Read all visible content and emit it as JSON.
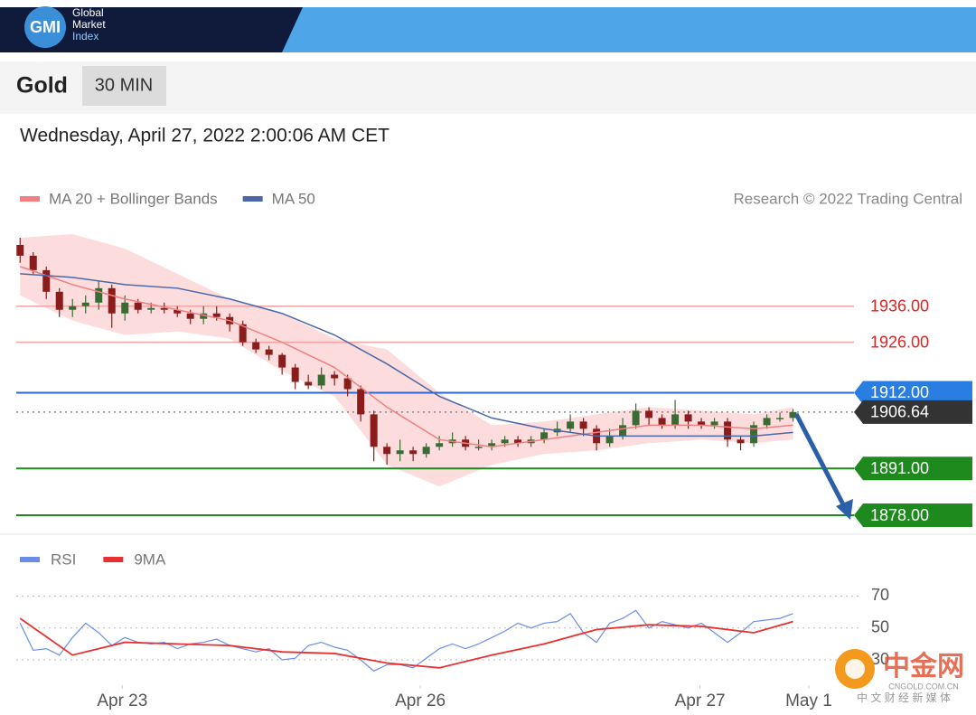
{
  "header": {
    "logo": "GMI",
    "brand": [
      "Global",
      "Market",
      "Index"
    ]
  },
  "instrument": "Gold",
  "timeframe": "30 MIN",
  "date": "Wednesday, April 27, 2022 2:00:06 AM CET",
  "chart_data": [
    {
      "type": "candlestick",
      "attribution": "Research © 2022 Trading Central",
      "up_color": "#3b6b35",
      "down_color": "#8b1c1c",
      "xlim": [
        -0.5,
        72
      ],
      "ylim": [
        1873,
        1957
      ],
      "open": [
        1953,
        1950,
        1946,
        1940,
        1935,
        1936,
        1937,
        1941,
        1934,
        1937,
        1935,
        1935.5,
        1935,
        1934,
        1932.5,
        1934,
        1933,
        1931,
        1926,
        1924,
        1922.5,
        1919,
        1915,
        1914,
        1917,
        1916,
        1913,
        1906,
        1897,
        1895,
        1896,
        1895,
        1897,
        1898,
        1899,
        1897,
        1897,
        1898,
        1899,
        1898,
        1899,
        1901,
        1902,
        1904,
        1902,
        1898,
        1900,
        1903,
        1907,
        1905,
        1903,
        1906,
        1904,
        1903,
        1904,
        1899,
        1898,
        1903,
        1905,
        1905
      ],
      "high": [
        1955,
        1951,
        1947,
        1941,
        1938,
        1939,
        1943,
        1942,
        1939,
        1938,
        1937,
        1937,
        1936,
        1935,
        1936,
        1936,
        1934,
        1932,
        1927,
        1925,
        1923,
        1920,
        1917,
        1919,
        1918,
        1917,
        1914,
        1907,
        1898,
        1899,
        1897,
        1898,
        1900,
        1901,
        1900,
        1899,
        1899,
        1900,
        1900,
        1900,
        1902,
        1904,
        1906,
        1905,
        1903,
        1902,
        1905,
        1909,
        1908,
        1906,
        1910,
        1907,
        1905,
        1905,
        1905,
        1900,
        1904,
        1906,
        1906.5,
        1907.5
      ],
      "low": [
        1948,
        1945,
        1938,
        1933,
        1933,
        1934,
        1935,
        1930,
        1932,
        1934,
        1934,
        1934,
        1933,
        1931,
        1931,
        1932,
        1929,
        1925,
        1923,
        1921,
        1917,
        1913,
        1913,
        1913,
        1914,
        1911,
        1904,
        1893,
        1892,
        1893,
        1893,
        1894,
        1896,
        1897,
        1896,
        1896,
        1896,
        1897,
        1897,
        1897,
        1898,
        1900,
        1901,
        1900,
        1896,
        1897,
        1899,
        1902,
        1903,
        1902,
        1902,
        1902,
        1902,
        1902,
        1897,
        1896,
        1897,
        1902,
        1904,
        1904
      ],
      "close": [
        1950,
        1946,
        1940,
        1935,
        1936,
        1937,
        1941,
        1934,
        1937,
        1935,
        1935.5,
        1935,
        1934,
        1932.5,
        1934,
        1933,
        1931,
        1926,
        1924,
        1922.5,
        1919,
        1915,
        1914,
        1917,
        1916,
        1913,
        1906,
        1897,
        1895,
        1896,
        1895,
        1897,
        1898,
        1899,
        1897,
        1897,
        1898,
        1899,
        1898,
        1899,
        1901,
        1902,
        1904,
        1902,
        1898,
        1900,
        1903,
        1907,
        1905,
        1903,
        1906,
        1904,
        1903,
        1904,
        1899,
        1898,
        1903,
        1905,
        1905,
        1906.64
      ],
      "series": [
        {
          "name": "MA 20 + Bollinger Bands",
          "color": "#f08080",
          "band_color": "#fbd3d3",
          "x": [
            0,
            4,
            8,
            12,
            16,
            20,
            24,
            28,
            32,
            36,
            40,
            44,
            48,
            52,
            56,
            59
          ],
          "values": [
            1947,
            1942,
            1938,
            1935,
            1932,
            1926,
            1919,
            1908,
            1899,
            1897,
            1899,
            1901,
            1903,
            1903,
            1902,
            1903
          ],
          "upper": [
            1955,
            1956,
            1952,
            1945,
            1938,
            1934,
            1927,
            1924,
            1912,
            1903,
            1904,
            1906,
            1908,
            1907,
            1906,
            1908
          ],
          "lower": [
            1939,
            1932,
            1928,
            1929,
            1927,
            1918,
            1911,
            1892,
            1886,
            1892,
            1895,
            1896,
            1898,
            1899,
            1898,
            1899
          ]
        },
        {
          "name": "MA 50",
          "color": "#4a68a8",
          "x": [
            0,
            4,
            8,
            12,
            16,
            20,
            24,
            28,
            32,
            36,
            40,
            44,
            48,
            52,
            56,
            59
          ],
          "values": [
            1945,
            1944,
            1942,
            1941,
            1938,
            1934,
            1928,
            1920,
            1911,
            1905,
            1902,
            1900,
            1900,
            1900,
            1900,
            1901
          ]
        }
      ],
      "levels": [
        {
          "value": 1936,
          "label": "1936.00",
          "color": "#e02424",
          "line_color": "#f5a3a3",
          "boxed": false,
          "dashed": false
        },
        {
          "value": 1926,
          "label": "1926.00",
          "color": "#e02424",
          "line_color": "#f5a3a3",
          "boxed": false,
          "dashed": false
        },
        {
          "value": 1912,
          "label": "1912.00",
          "color": "#2a7de1",
          "line_color": "#2a66d8",
          "boxed": true,
          "dashed": false
        },
        {
          "value": 1906.64,
          "label": "1906.64",
          "color": "#333333",
          "line_color": "#888888",
          "boxed": true,
          "dashed": true
        },
        {
          "value": 1891,
          "label": "1891.00",
          "color": "#1e8a1e",
          "line_color": "#1e8a1e",
          "boxed": true,
          "dashed": false
        },
        {
          "value": 1878,
          "label": "1878.00",
          "color": "#1e8a1e",
          "line_color": "#1e8a1e",
          "boxed": true,
          "dashed": false
        }
      ]
    },
    {
      "type": "line",
      "xlim": [
        -0.5,
        72
      ],
      "ylim": [
        13,
        81
      ],
      "yticks": [
        70,
        50,
        30
      ],
      "xticks": [
        {
          "value": 7.8,
          "label": "Apr 23"
        },
        {
          "value": 30.55,
          "label": "Apr 26"
        },
        {
          "value": 51.9,
          "label": "Apr 27"
        },
        {
          "value": 60.2,
          "label": "May 1"
        }
      ],
      "grid": true,
      "series": [
        {
          "name": "RSI",
          "color": "#6a8ee8",
          "values": [
            53,
            36,
            37,
            33,
            44,
            53,
            47,
            39,
            44,
            41,
            40,
            41,
            37,
            40,
            41,
            43,
            39,
            37,
            35,
            37,
            30,
            31,
            39,
            41,
            38,
            36,
            30,
            23,
            27,
            27,
            25,
            31,
            37,
            40,
            37,
            40,
            44,
            48,
            53,
            50,
            53,
            54,
            59,
            47,
            41,
            53,
            56,
            61,
            50,
            54,
            52,
            50,
            53,
            47,
            41,
            47,
            54,
            55,
            56,
            59
          ]
        },
        {
          "name": "9MA",
          "color": "#e83030",
          "x": [
            0,
            4,
            8,
            12,
            16,
            20,
            24,
            28,
            32,
            36,
            40,
            44,
            48,
            52,
            56,
            59
          ],
          "values": [
            56,
            33,
            41,
            40,
            39,
            35,
            34,
            28,
            25,
            33,
            40,
            49,
            52,
            51,
            47,
            54
          ]
        }
      ]
    }
  ],
  "watermark": {
    "name": "中金网",
    "site": "CNGOLD.COM.CN",
    "slogan": "中 文 财 经 新 媒 体"
  }
}
